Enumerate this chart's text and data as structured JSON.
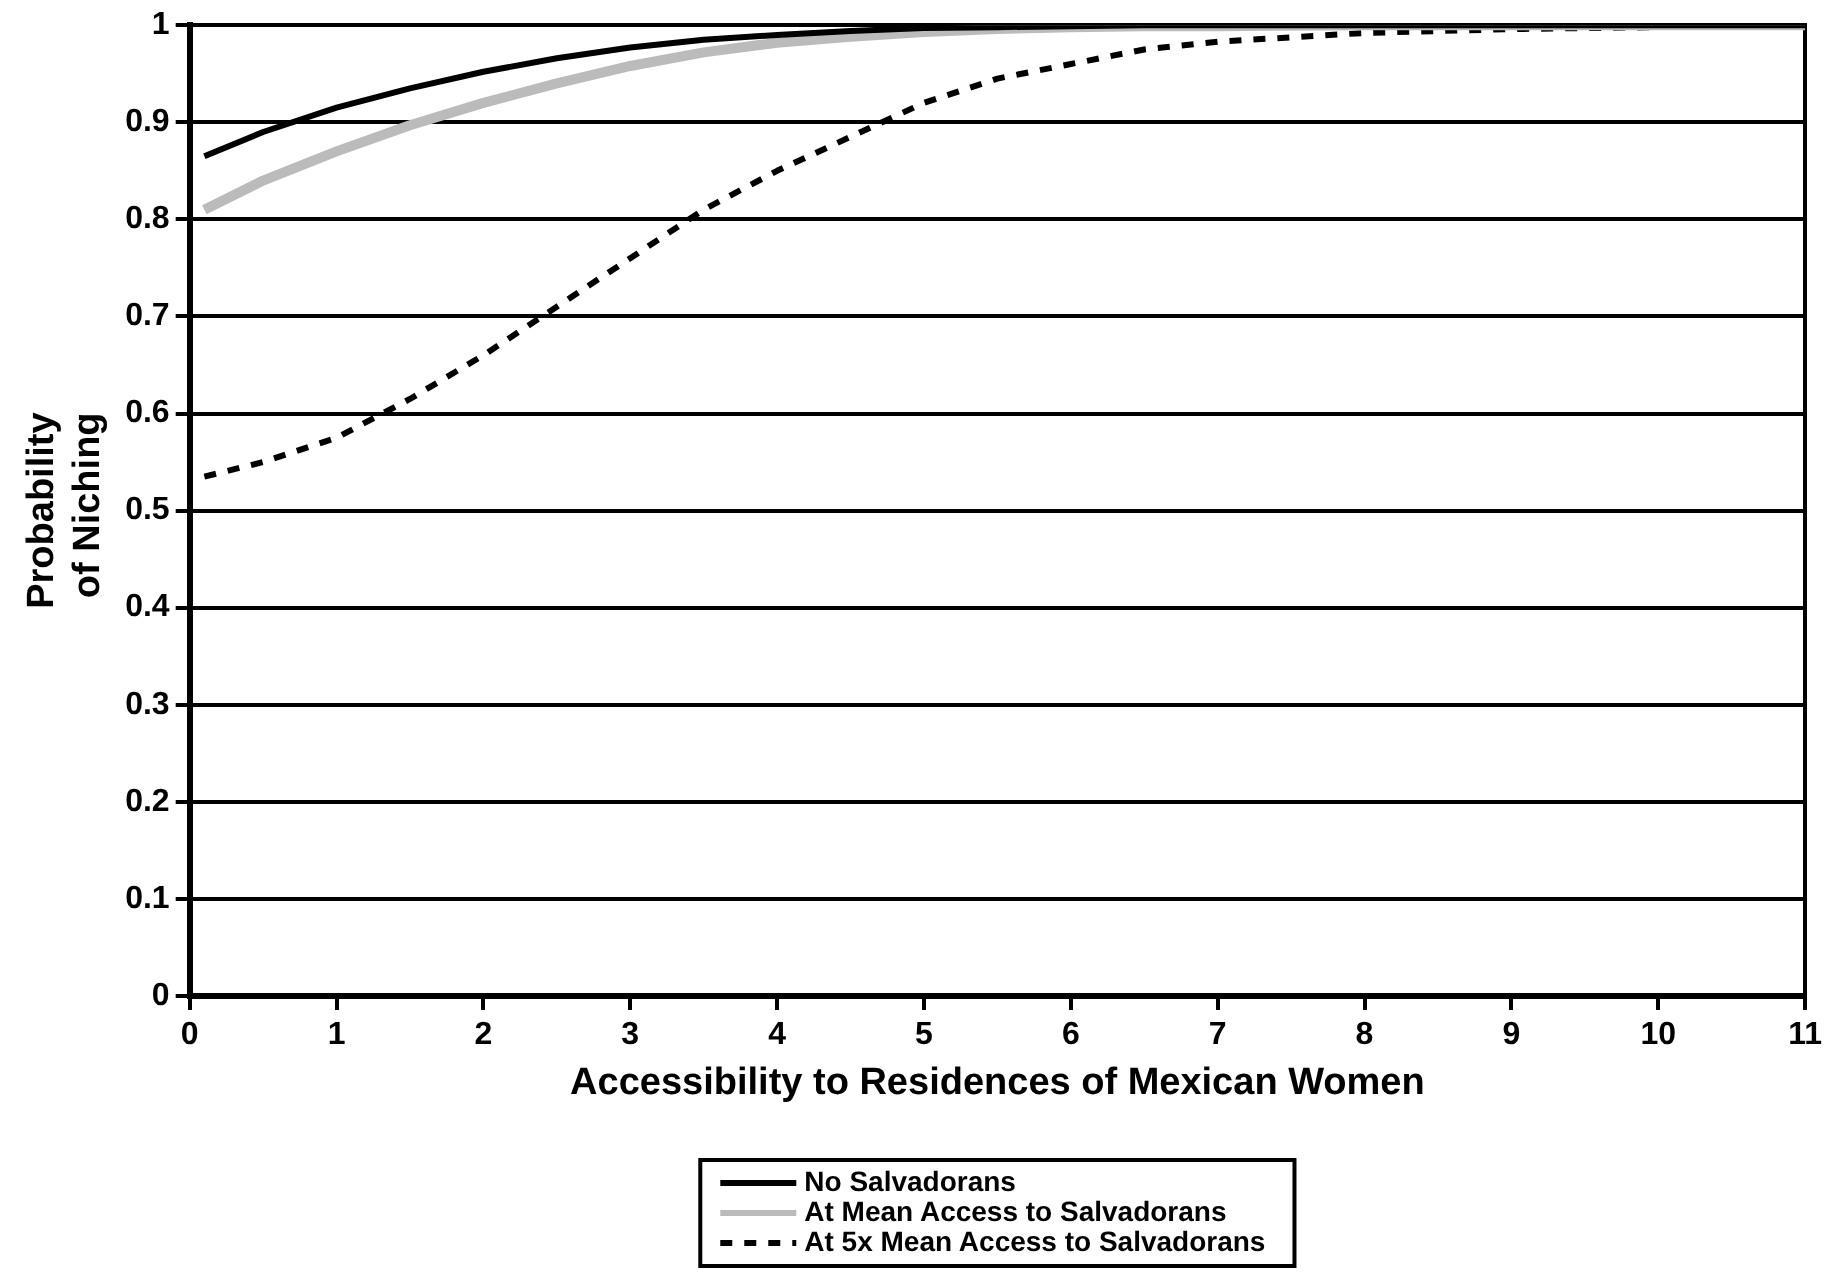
{
  "chart_data": {
    "type": "line",
    "xlabel": "Accessibility to Residences of Mexican Women",
    "ylabel": "Probability of Niching",
    "x": [
      0.1,
      0.5,
      1,
      1.5,
      2,
      2.5,
      3,
      3.5,
      4,
      4.5,
      5,
      5.5,
      6,
      6.5,
      7,
      8,
      9,
      10,
      11
    ],
    "series": [
      {
        "name": "No Salvadorans",
        "color": "#000000",
        "line_style": "solid",
        "values": [
          0.865,
          0.89,
          0.915,
          0.935,
          0.952,
          0.966,
          0.977,
          0.985,
          0.99,
          0.994,
          0.997,
          0.998,
          0.999,
          1,
          1,
          1,
          1,
          1,
          1
        ]
      },
      {
        "name": "At Mean Access to Salvadorans",
        "color": "#bbbbbb",
        "line_style": "solid",
        "values": [
          0.81,
          0.84,
          0.87,
          0.897,
          0.92,
          0.94,
          0.958,
          0.972,
          0.982,
          0.988,
          0.993,
          0.996,
          0.998,
          0.999,
          0.999,
          1,
          1,
          1,
          1
        ]
      },
      {
        "name": "At 5x Mean Access to Salvadorans",
        "color": "#000000",
        "line_style": "dashed",
        "values": [
          0.535,
          0.55,
          0.575,
          0.615,
          0.66,
          0.71,
          0.76,
          0.81,
          0.85,
          0.885,
          0.92,
          0.945,
          0.96,
          0.975,
          0.983,
          0.992,
          0.996,
          0.998,
          1
        ]
      }
    ],
    "xlim": [
      0,
      11
    ],
    "xticks": [
      0,
      1,
      2,
      3,
      4,
      5,
      6,
      7,
      8,
      9,
      10,
      11
    ],
    "ylim": [
      0,
      1
    ],
    "yticks": [
      0,
      0.1,
      0.2,
      0.3,
      0.4,
      0.5,
      0.6,
      0.7,
      0.8,
      0.9,
      1
    ],
    "grid": "y",
    "legend": "bottom",
    "marker": "none"
  }
}
